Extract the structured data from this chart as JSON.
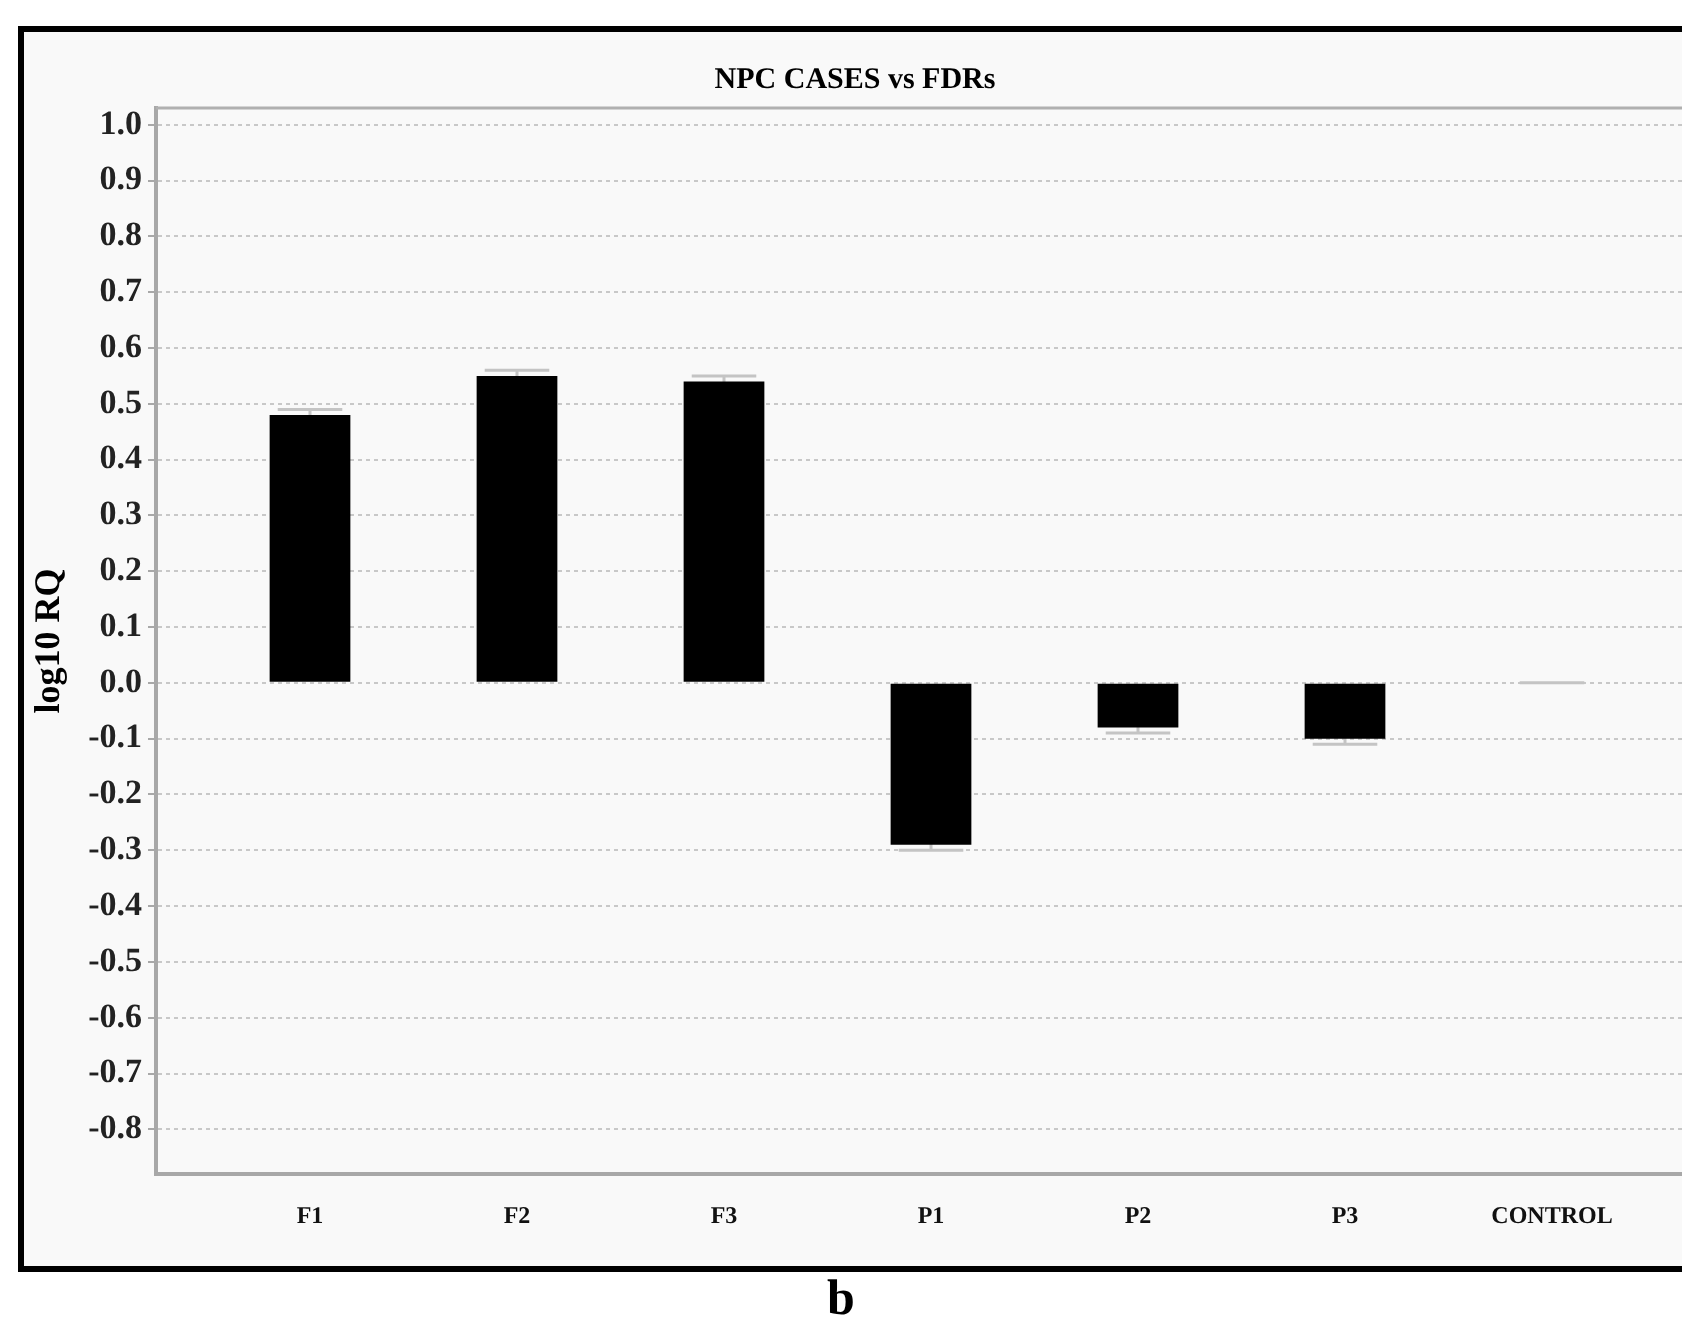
{
  "chart_data": {
    "type": "bar",
    "title": "NPC CASES vs FDRs",
    "ylabel": "log10 RQ",
    "categories": [
      "F1",
      "F2",
      "F3",
      "P1",
      "P2",
      "P3",
      "CONTROL"
    ],
    "values": [
      0.48,
      0.55,
      0.54,
      -0.29,
      -0.08,
      -0.1,
      0
    ],
    "errors": [
      0.01,
      0.01,
      0.01,
      0.01,
      0.01,
      0.01,
      0
    ],
    "color": "#000000",
    "ylim": [
      -0.88,
      1.03
    ],
    "yticks": [
      {
        "value": 1,
        "label": "1.0"
      },
      0.9,
      0.8,
      0.7,
      0.6,
      0.5,
      0.4,
      0.3,
      0.2,
      0.1,
      {
        "value": 0,
        "label": "0.0"
      },
      -0.1,
      -0.2,
      -0.3,
      -0.4,
      -0.5,
      -0.6,
      -0.7,
      -0.8
    ],
    "grid": "y",
    "annotations": [
      "b"
    ]
  }
}
